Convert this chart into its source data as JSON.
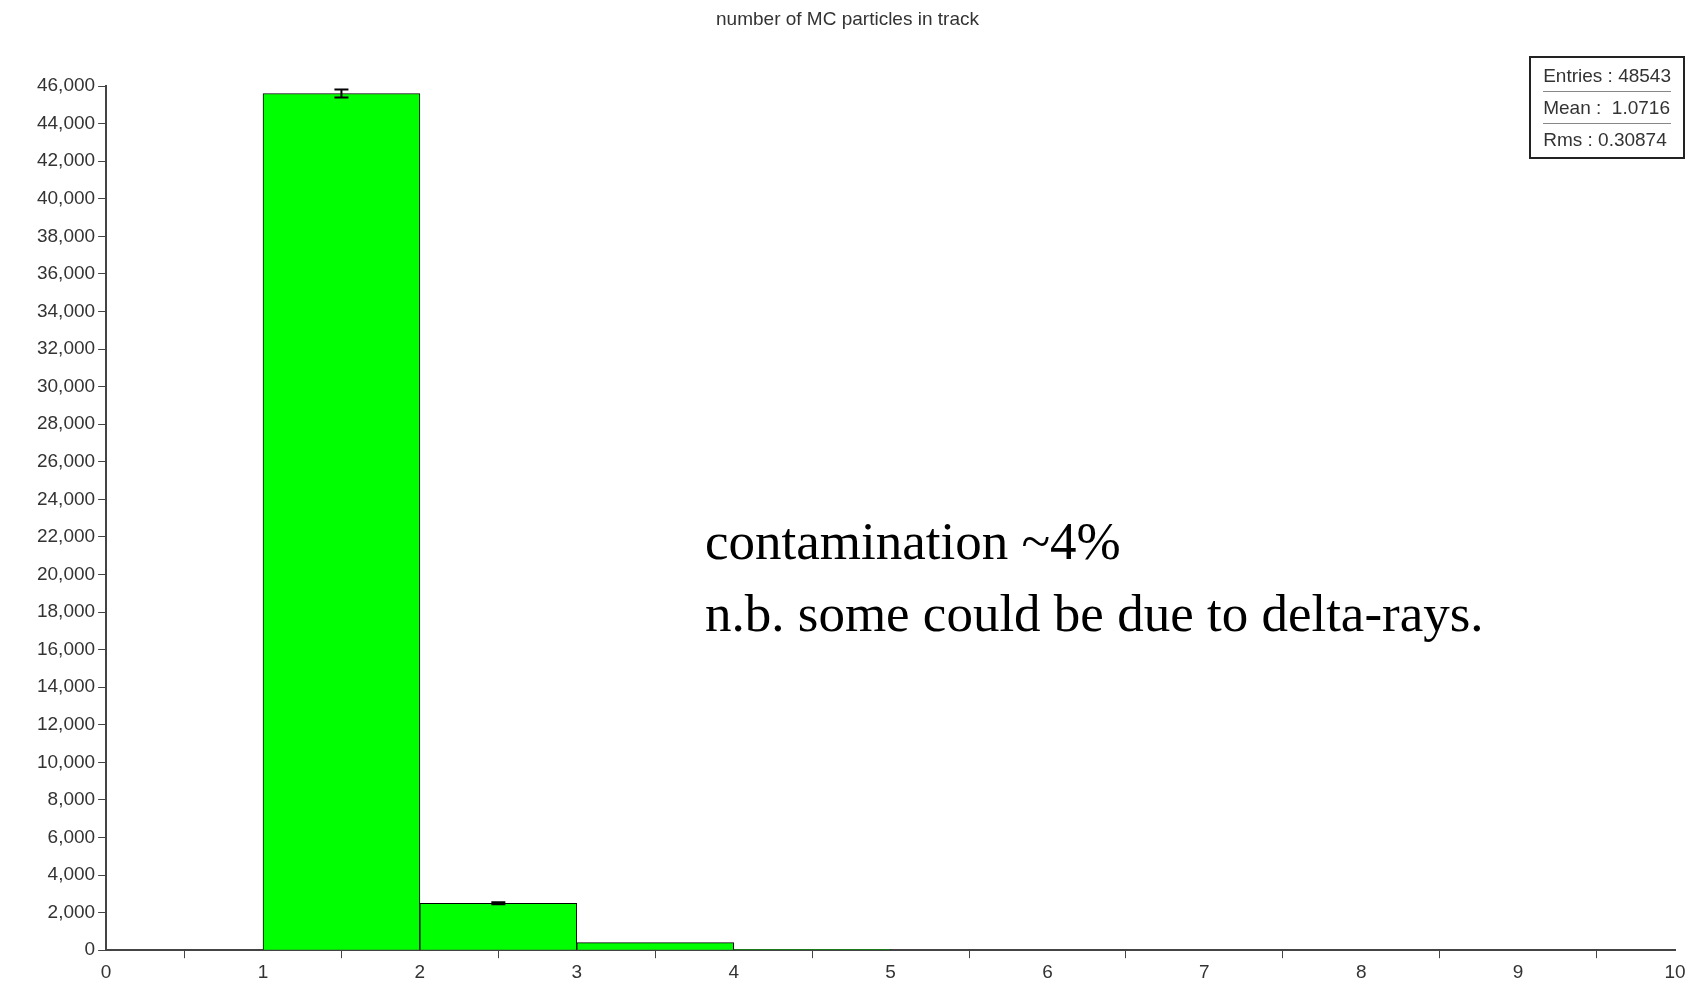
{
  "chart_data": {
    "type": "histogram",
    "title": "number of MC particles in track",
    "bins": [
      0,
      1,
      2,
      3,
      4,
      5,
      6,
      7,
      8,
      9,
      10
    ],
    "values": [
      0,
      45600,
      2500,
      400,
      30,
      null,
      null,
      0,
      0,
      0
    ],
    "errors": [
      null,
      214,
      50,
      null,
      null,
      null,
      null,
      null,
      null,
      null
    ],
    "color": "#00ff00",
    "xlim": [
      0,
      10
    ],
    "xticks": [
      0,
      1,
      2,
      3,
      4,
      5,
      6,
      7,
      8,
      9,
      10
    ],
    "ylim": [
      0,
      46000
    ],
    "yticks": [
      0,
      {
        "value": 2000,
        "label": "2,000"
      },
      {
        "value": 4000,
        "label": "4,000"
      },
      {
        "value": 6000,
        "label": "6,000"
      },
      {
        "value": 8000,
        "label": "8,000"
      },
      {
        "value": 10000,
        "label": "10,000"
      },
      {
        "value": 12000,
        "label": "12,000"
      },
      {
        "value": 14000,
        "label": "14,000"
      },
      {
        "value": 16000,
        "label": "16,000"
      },
      {
        "value": 18000,
        "label": "18,000"
      },
      {
        "value": 20000,
        "label": "20,000"
      },
      {
        "value": 22000,
        "label": "22,000"
      },
      {
        "value": 24000,
        "label": "24,000"
      },
      {
        "value": 26000,
        "label": "26,000"
      },
      {
        "value": 28000,
        "label": "28,000"
      },
      {
        "value": 30000,
        "label": "30,000"
      },
      {
        "value": 32000,
        "label": "32,000"
      },
      {
        "value": 34000,
        "label": "34,000"
      },
      {
        "value": 36000,
        "label": "36,000"
      },
      {
        "value": 38000,
        "label": "38,000"
      },
      {
        "value": 40000,
        "label": "40,000"
      },
      {
        "value": 42000,
        "label": "42,000"
      },
      {
        "value": 44000,
        "label": "44,000"
      },
      {
        "value": 46000,
        "label": "46,000"
      }
    ],
    "grid": false,
    "legend": false,
    "annotations": [
      "Entries : 48543",
      "Mean :  1.0716",
      "Rms : 0.30874",
      "contamination ~4%",
      "n.b. some could be due to delta-rays."
    ]
  }
}
